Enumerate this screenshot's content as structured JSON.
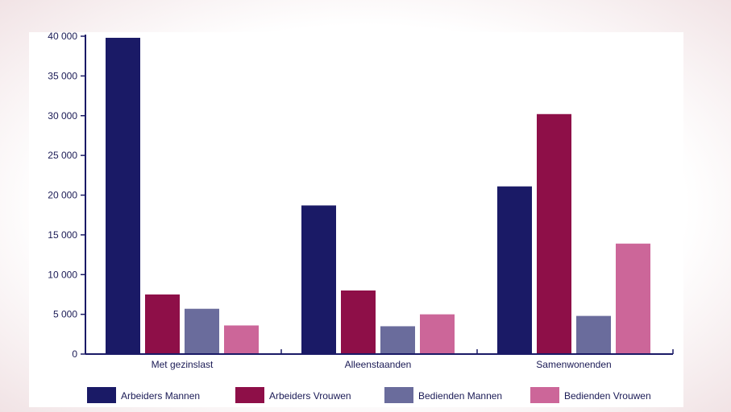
{
  "chart_data": {
    "type": "bar",
    "categories": [
      "Met gezinslast",
      "Alleenstaanden",
      "Samenwonenden"
    ],
    "series": [
      {
        "name": "Arbeiders Mannen",
        "color": "#1a1a66",
        "values": [
          39800,
          18700,
          21100
        ]
      },
      {
        "name": "Arbeiders Vrouwen",
        "color": "#8e0f48",
        "values": [
          7500,
          8000,
          30200
        ]
      },
      {
        "name": "Bedienden Mannen",
        "color": "#6a6c9c",
        "values": [
          5700,
          3500,
          4800
        ]
      },
      {
        "name": "Bedienden Vrouwen",
        "color": "#cc6699",
        "values": [
          3600,
          5000,
          13900
        ]
      }
    ],
    "ylim": [
      0,
      40000
    ],
    "yticks": [
      0,
      5000,
      10000,
      15000,
      20000,
      25000,
      30000,
      35000,
      40000
    ],
    "ytick_labels": [
      "0",
      "5 000",
      "10 000",
      "15 000",
      "20 000",
      "25 000",
      "30 000",
      "35 000",
      "40 000"
    ],
    "legend_position": "bottom",
    "grid": false
  }
}
